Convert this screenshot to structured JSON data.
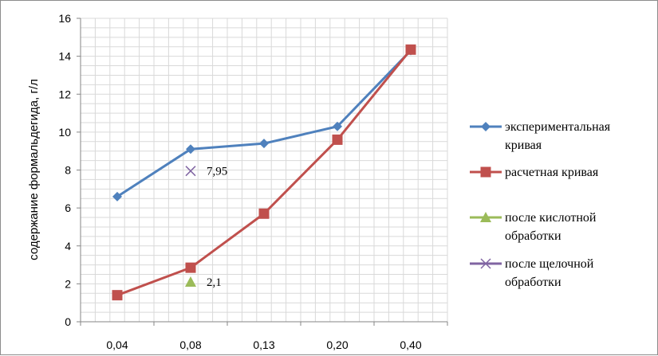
{
  "chart_data": {
    "type": "line",
    "title": "",
    "xlabel": "",
    "ylabel": "содержание формальдегида,  г/л",
    "categories": [
      "0,04",
      "0,08",
      "0,13",
      "0,20",
      "0,40"
    ],
    "ylim": [
      0,
      16
    ],
    "yticks": [
      "0",
      "2",
      "4",
      "6",
      "8",
      "10",
      "12",
      "14",
      "16"
    ],
    "grid": true,
    "legend_position": "right",
    "series": [
      {
        "name": "экспериментальная кривая",
        "name_lines": [
          "экспериментальная",
          "кривая"
        ],
        "marker": "diamond",
        "color": "#4f81bd",
        "values": [
          6.6,
          9.1,
          9.4,
          10.3,
          14.3
        ]
      },
      {
        "name": "расчетная кривая",
        "name_lines": [
          "расчетная кривая"
        ],
        "marker": "square",
        "color": "#c0504d",
        "values": [
          1.4,
          2.85,
          5.7,
          9.6,
          14.35
        ]
      },
      {
        "name": "после кислотной обработки",
        "name_lines": [
          "после кислотной",
          "обработки"
        ],
        "marker": "triangle",
        "color": "#9bbb59",
        "points": [
          {
            "x": "0,08",
            "y": 2.1,
            "label": "2,1"
          }
        ]
      },
      {
        "name": "после щелочной обработки",
        "name_lines": [
          "после щелочной",
          "обработки"
        ],
        "marker": "x",
        "color": "#8064a2",
        "points": [
          {
            "x": "0,08",
            "y": 7.95,
            "label": "7,95"
          }
        ]
      }
    ]
  }
}
